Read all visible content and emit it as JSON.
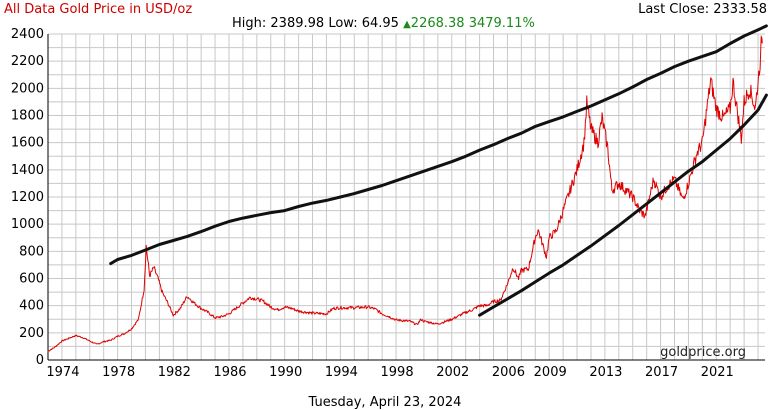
{
  "header": {
    "title": "All Data Gold Price in USD/oz",
    "title_color": "#cc0000",
    "last_close_label": "Last Close: 2333.58",
    "high_label": "High:",
    "high_value": "2389.98",
    "low_label": "Low:",
    "low_value": "64.95",
    "change": "2268.38",
    "change_pct": "3479.11%",
    "change_color": "#1a8a1a"
  },
  "footer": {
    "date": "Tuesday, April 23, 2024"
  },
  "chart_data": {
    "type": "line",
    "credit": "goldprice.org",
    "ylim": [
      0,
      2400
    ],
    "yticks": [
      0,
      200,
      400,
      600,
      800,
      1000,
      1200,
      1400,
      1600,
      1800,
      2000,
      2200,
      2400
    ],
    "xlim": [
      1973,
      2024.5
    ],
    "xticks": [
      1974,
      1978,
      1982,
      1986,
      1990,
      1994,
      1998,
      2002,
      2006,
      2009,
      2013,
      2017,
      2021
    ],
    "grid": true,
    "series": [
      {
        "key": "gold",
        "color": "#dd0000",
        "points": [
          [
            1973.0,
            65
          ],
          [
            1973.5,
            95
          ],
          [
            1974.0,
            140
          ],
          [
            1974.5,
            160
          ],
          [
            1975.0,
            180
          ],
          [
            1975.5,
            165
          ],
          [
            1976.0,
            140
          ],
          [
            1976.5,
            115
          ],
          [
            1977.0,
            135
          ],
          [
            1977.5,
            145
          ],
          [
            1978.0,
            175
          ],
          [
            1978.5,
            195
          ],
          [
            1979.0,
            230
          ],
          [
            1979.5,
            300
          ],
          [
            1979.9,
            520
          ],
          [
            1980.05,
            840
          ],
          [
            1980.3,
            620
          ],
          [
            1980.6,
            680
          ],
          [
            1980.9,
            600
          ],
          [
            1981.2,
            500
          ],
          [
            1981.6,
            420
          ],
          [
            1982.0,
            330
          ],
          [
            1982.5,
            380
          ],
          [
            1983.0,
            470
          ],
          [
            1983.5,
            420
          ],
          [
            1984.0,
            380
          ],
          [
            1984.5,
            350
          ],
          [
            1985.0,
            310
          ],
          [
            1985.5,
            320
          ],
          [
            1986.0,
            340
          ],
          [
            1986.5,
            380
          ],
          [
            1987.0,
            420
          ],
          [
            1987.5,
            460
          ],
          [
            1988.0,
            450
          ],
          [
            1988.5,
            430
          ],
          [
            1989.0,
            390
          ],
          [
            1989.5,
            370
          ],
          [
            1990.0,
            390
          ],
          [
            1990.5,
            380
          ],
          [
            1991.0,
            360
          ],
          [
            1992.0,
            345
          ],
          [
            1993.0,
            340
          ],
          [
            1993.5,
            380
          ],
          [
            1994.0,
            385
          ],
          [
            1995.0,
            385
          ],
          [
            1996.0,
            390
          ],
          [
            1996.5,
            375
          ],
          [
            1997.0,
            340
          ],
          [
            1997.5,
            320
          ],
          [
            1998.0,
            295
          ],
          [
            1999.0,
            285
          ],
          [
            1999.5,
            260
          ],
          [
            1999.8,
            300
          ],
          [
            2000.0,
            285
          ],
          [
            2001.0,
            265
          ],
          [
            2002.0,
            300
          ],
          [
            2003.0,
            350
          ],
          [
            2003.5,
            370
          ],
          [
            2004.0,
            400
          ],
          [
            2004.5,
            400
          ],
          [
            2005.0,
            430
          ],
          [
            2005.5,
            440
          ],
          [
            2006.0,
            560
          ],
          [
            2006.4,
            680
          ],
          [
            2006.8,
            600
          ],
          [
            2007.0,
            660
          ],
          [
            2007.5,
            670
          ],
          [
            2008.0,
            900
          ],
          [
            2008.2,
            960
          ],
          [
            2008.8,
            760
          ],
          [
            2009.0,
            900
          ],
          [
            2009.5,
            950
          ],
          [
            2010.0,
            1100
          ],
          [
            2010.5,
            1250
          ],
          [
            2011.0,
            1400
          ],
          [
            2011.5,
            1600
          ],
          [
            2011.7,
            1890
          ],
          [
            2012.0,
            1700
          ],
          [
            2012.5,
            1600
          ],
          [
            2012.8,
            1780
          ],
          [
            2013.2,
            1560
          ],
          [
            2013.5,
            1250
          ],
          [
            2014.0,
            1300
          ],
          [
            2014.5,
            1250
          ],
          [
            2015.0,
            1200
          ],
          [
            2015.5,
            1100
          ],
          [
            2015.9,
            1060
          ],
          [
            2016.5,
            1330
          ],
          [
            2017.0,
            1200
          ],
          [
            2017.5,
            1280
          ],
          [
            2018.0,
            1330
          ],
          [
            2018.6,
            1180
          ],
          [
            2019.0,
            1300
          ],
          [
            2019.6,
            1520
          ],
          [
            2020.0,
            1600
          ],
          [
            2020.6,
            2060
          ],
          [
            2021.0,
            1850
          ],
          [
            2021.5,
            1780
          ],
          [
            2022.0,
            1850
          ],
          [
            2022.2,
            2050
          ],
          [
            2022.8,
            1630
          ],
          [
            2023.0,
            1900
          ],
          [
            2023.4,
            2000
          ],
          [
            2023.8,
            1850
          ],
          [
            2024.0,
            2050
          ],
          [
            2024.2,
            2250
          ],
          [
            2024.25,
            2390
          ],
          [
            2024.3,
            2333
          ]
        ]
      },
      {
        "key": "upper-band",
        "color": "#111111",
        "points": [
          [
            1977.5,
            710
          ],
          [
            1978,
            740
          ],
          [
            1979,
            770
          ],
          [
            1980,
            810
          ],
          [
            1981,
            850
          ],
          [
            1982,
            880
          ],
          [
            1983,
            910
          ],
          [
            1984,
            945
          ],
          [
            1985,
            985
          ],
          [
            1986,
            1020
          ],
          [
            1987,
            1045
          ],
          [
            1988,
            1065
          ],
          [
            1989,
            1085
          ],
          [
            1990,
            1100
          ],
          [
            1991,
            1130
          ],
          [
            1992,
            1155
          ],
          [
            1993,
            1175
          ],
          [
            1994,
            1200
          ],
          [
            1995,
            1225
          ],
          [
            1996,
            1255
          ],
          [
            1997,
            1285
          ],
          [
            1998,
            1320
          ],
          [
            1999,
            1355
          ],
          [
            2000,
            1390
          ],
          [
            2001,
            1425
          ],
          [
            2002,
            1460
          ],
          [
            2003,
            1500
          ],
          [
            2004,
            1545
          ],
          [
            2005,
            1585
          ],
          [
            2006,
            1630
          ],
          [
            2007,
            1670
          ],
          [
            2008,
            1720
          ],
          [
            2009,
            1755
          ],
          [
            2010,
            1790
          ],
          [
            2011,
            1830
          ],
          [
            2012,
            1870
          ],
          [
            2013,
            1915
          ],
          [
            2014,
            1960
          ],
          [
            2015,
            2010
          ],
          [
            2016,
            2065
          ],
          [
            2017,
            2110
          ],
          [
            2018,
            2160
          ],
          [
            2019,
            2200
          ],
          [
            2020,
            2235
          ],
          [
            2021,
            2270
          ],
          [
            2022,
            2330
          ],
          [
            2023,
            2385
          ],
          [
            2024,
            2430
          ],
          [
            2024.6,
            2460
          ]
        ]
      },
      {
        "key": "lower-band",
        "color": "#111111",
        "points": [
          [
            2004.0,
            330
          ],
          [
            2005.0,
            390
          ],
          [
            2006.0,
            450
          ],
          [
            2007.0,
            510
          ],
          [
            2008.0,
            575
          ],
          [
            2009.0,
            640
          ],
          [
            2010.0,
            700
          ],
          [
            2011.0,
            770
          ],
          [
            2012.0,
            840
          ],
          [
            2013.0,
            915
          ],
          [
            2014.0,
            990
          ],
          [
            2015.0,
            1070
          ],
          [
            2016.0,
            1150
          ],
          [
            2017.0,
            1230
          ],
          [
            2018.0,
            1310
          ],
          [
            2019.0,
            1390
          ],
          [
            2020.0,
            1460
          ],
          [
            2021.0,
            1545
          ],
          [
            2022.0,
            1630
          ],
          [
            2023.0,
            1730
          ],
          [
            2024.0,
            1840
          ],
          [
            2024.6,
            1950
          ]
        ]
      }
    ]
  }
}
